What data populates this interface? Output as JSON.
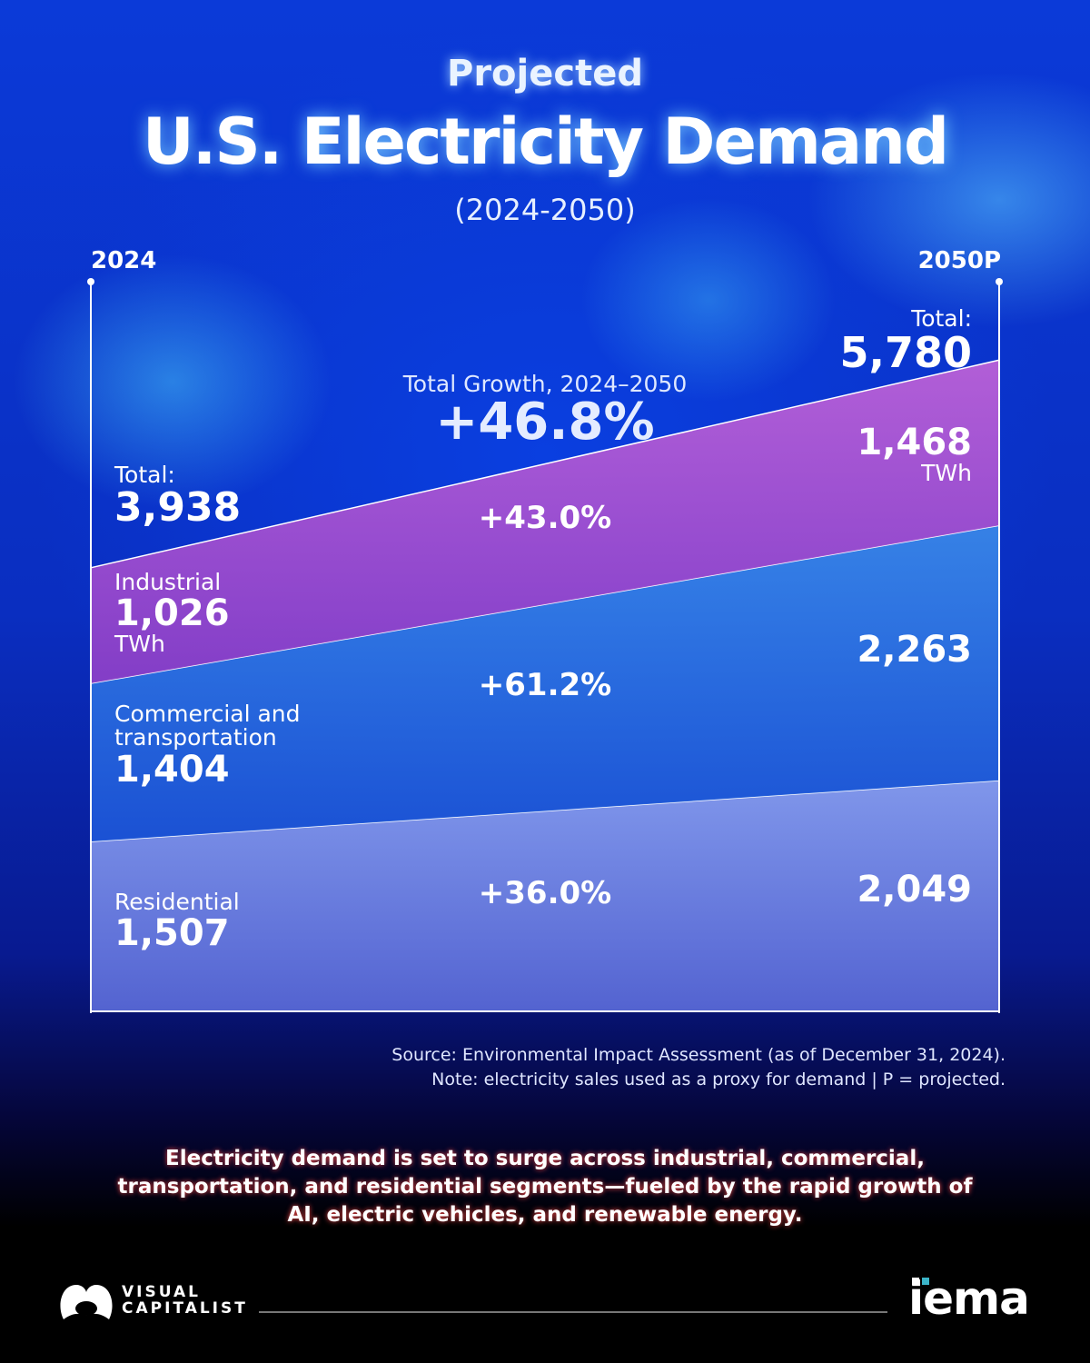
{
  "header": {
    "pre": "Projected",
    "title": "U.S. Electricity Demand",
    "subtitle": "(2024-2050)"
  },
  "chart_data": {
    "type": "area",
    "stacked": true,
    "x": [
      "2024",
      "2050P"
    ],
    "unit": "TWh",
    "series": [
      {
        "name": "Residential",
        "values": [
          1507,
          2049
        ],
        "growth": "+36.0%",
        "color": "#6f7fe0"
      },
      {
        "name": "Commercial and transportation",
        "values": [
          1404,
          2263
        ],
        "growth": "+61.2%",
        "color": "#2a6fe0"
      },
      {
        "name": "Industrial",
        "values": [
          1026,
          1468
        ],
        "growth": "+43.0%",
        "color": "#a04fd0"
      }
    ],
    "totals": {
      "label": "Total:",
      "start": "3,938",
      "end": "5,780"
    },
    "total_growth": {
      "label": "Total Growth, 2024–2050",
      "value": "+46.8%"
    },
    "labels": {
      "industrial_start": "1,026",
      "industrial_end": "1,468",
      "commercial_start": "1,404",
      "commercial_end": "2,263",
      "residential_start": "1,507",
      "residential_end": "2,049",
      "unit": "TWh"
    }
  },
  "source": "Source: Environmental Impact Assessment (as of December 31, 2024).",
  "note": "Note: electricity sales used as a proxy for demand | P = projected.",
  "tagline": [
    "Electricity demand is set to surge across industrial, commercial,",
    "transportation, and residential segments—fueled by the rapid growth of",
    "AI, electric vehicles, and renewable energy."
  ],
  "footer": {
    "brand_left": [
      "VISUAL",
      "CAPITALIST"
    ],
    "brand_right": "iema"
  }
}
